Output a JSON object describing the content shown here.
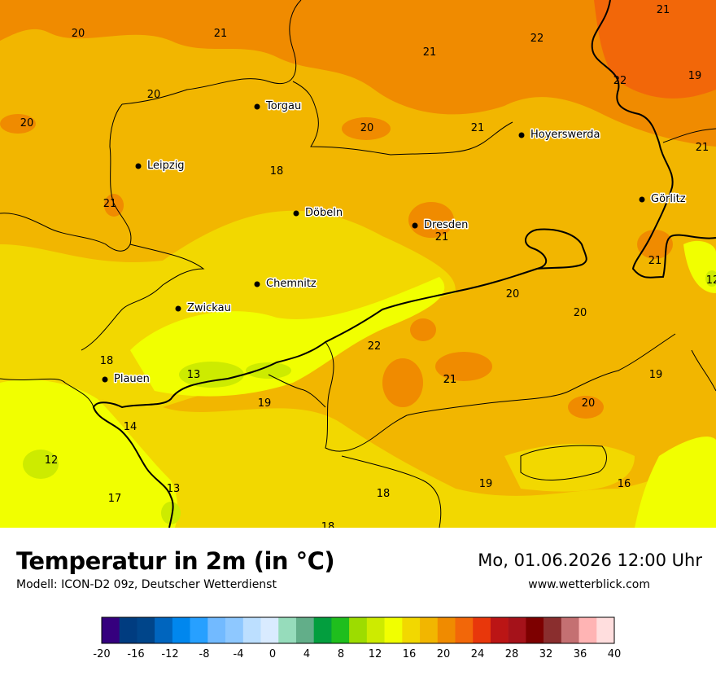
{
  "map": {
    "cities": [
      {
        "name": "Torgau"
      },
      {
        "name": "Hoyerswerda"
      },
      {
        "name": "Leipzig"
      },
      {
        "name": "Görlitz"
      },
      {
        "name": "Döbeln"
      },
      {
        "name": "Dresden"
      },
      {
        "name": "Chemnitz"
      },
      {
        "name": "Zwickau"
      },
      {
        "name": "Plauen"
      }
    ],
    "temperature_labels": [
      "21",
      "20",
      "21",
      "22",
      "21",
      "22",
      "19",
      "20",
      "20",
      "21",
      "21",
      "20",
      "18",
      "21",
      "21",
      "21",
      "21",
      "20",
      "20",
      "22",
      "18",
      "19",
      "13",
      "21",
      "20",
      "19",
      "14",
      "12",
      "13",
      "17",
      "18",
      "19",
      "16",
      "18",
      "12"
    ]
  },
  "footer": {
    "title": "Temperatur in 2m (in °C)",
    "model": "Modell: ICON-D2 09z, Deutscher Wetterdienst",
    "datetime": "Mo, 01.06.2026 12:00 Uhr",
    "website": "www.wetterblick.com"
  },
  "legend": {
    "colors": [
      "#35007e",
      "#003c80",
      "#00458a",
      "#0065be",
      "#0087ee",
      "#27a0ff",
      "#72baff",
      "#8ec8ff",
      "#bcdfff",
      "#d9ebff",
      "#96dcbb",
      "#62ae89",
      "#039e3e",
      "#1fbe1d",
      "#9ddc00",
      "#cdeb00",
      "#f1ff00",
      "#f2d800",
      "#f2b600",
      "#f08b00",
      "#f26709",
      "#e8370b",
      "#bb1515",
      "#a5121a",
      "#7d0000",
      "#8a2e2e",
      "#c47072",
      "#ffb4b4",
      "#ffdede"
    ],
    "ticks": [
      "-20",
      "-16",
      "-12",
      "-8",
      "-4",
      "0",
      "4",
      "8",
      "12",
      "16",
      "20",
      "24",
      "28",
      "32",
      "36",
      "40"
    ]
  }
}
